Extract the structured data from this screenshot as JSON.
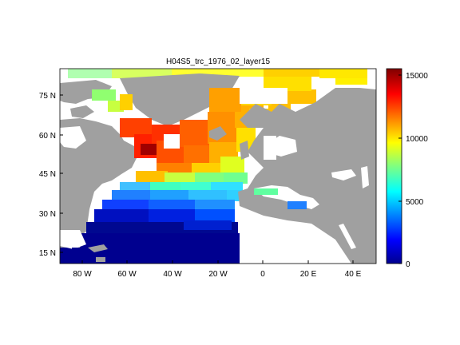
{
  "title": "H04S5_trc_1976_02_layer15",
  "map": {
    "lon_range_deg": [
      -90,
      50
    ],
    "lat_range_deg": [
      10,
      85
    ],
    "lon_tick_labels": [
      "80 W",
      "60 W",
      "40 W",
      "20 W",
      "0",
      "20 E",
      "40 E"
    ],
    "lat_tick_labels": [
      "75 N",
      "60 N",
      "45 N",
      "30 N",
      "15 N"
    ],
    "land_color": "#a0a0a0",
    "no_data_color": "#ffffff",
    "colormap": "jet"
  },
  "colorbar": {
    "range": [
      0,
      15500
    ],
    "tick_labels": [
      "0",
      "5000",
      "10000",
      "15000"
    ],
    "colors": [
      "#00008f",
      "#0000ff",
      "#0080ff",
      "#00ffff",
      "#80ff80",
      "#ffff00",
      "#ff8000",
      "#ff0000",
      "#800000"
    ]
  }
}
